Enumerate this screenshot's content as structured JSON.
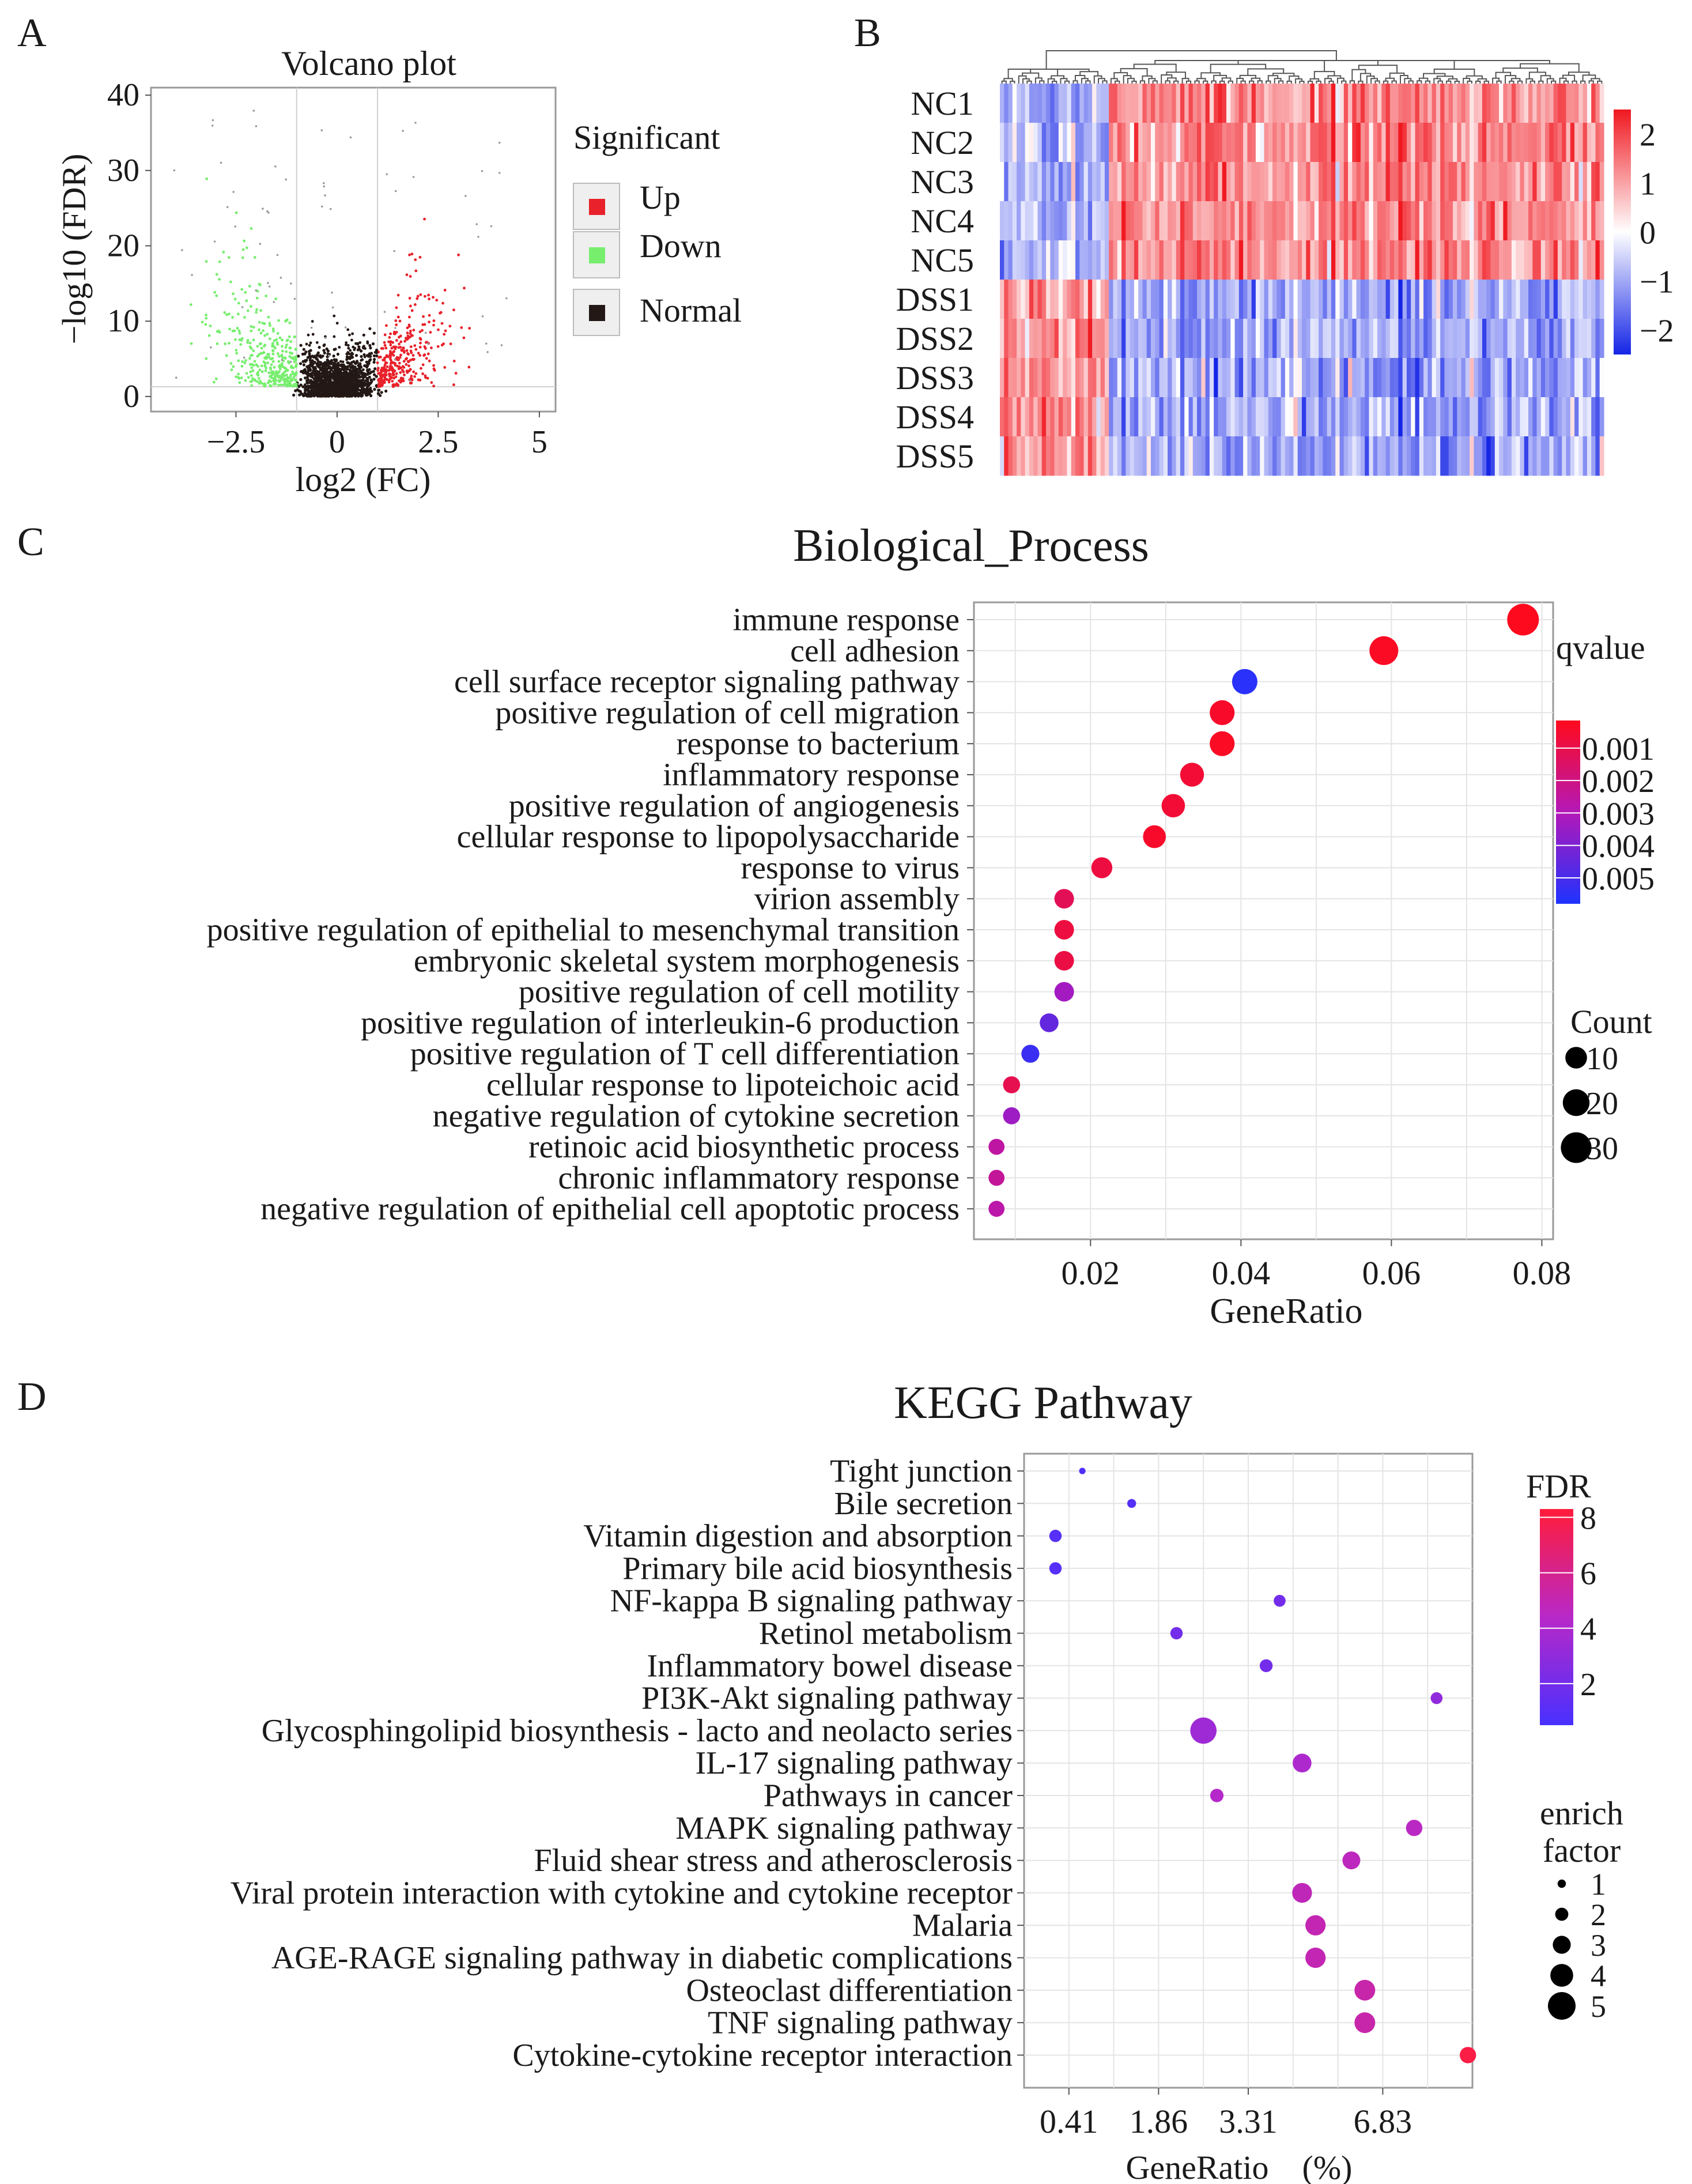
{
  "panel_labels": {
    "a": "A",
    "b": "B",
    "c": "C",
    "d": "D"
  },
  "colors": {
    "up": "#e8212a",
    "down": "#77ee6e",
    "normal": "#231815",
    "heat_low": "#1525e6",
    "heat_mid": "#ffffff",
    "heat_high": "#f01820",
    "q_low": "#ff0a1c",
    "q_high": "#1e33ff",
    "fdr_low": "#4830ff",
    "fdr_high": "#ff1c3a",
    "grid": "#e4e4e4",
    "frame": "#9a9a9a",
    "text": "#1a1a1a"
  },
  "chart_data": [
    {
      "id": "volcano",
      "type": "scatter",
      "title": "Volcano plot",
      "xlabel": "log2 (FC)",
      "ylabel": "−log10 (FDR)",
      "xlim": [
        -4.6,
        5.4
      ],
      "ylim": [
        -2,
        41
      ],
      "xticks": [
        -2.5,
        0,
        2.5,
        5
      ],
      "xtick_labels": [
        "−2.5",
        "0",
        "2.5",
        "5"
      ],
      "yticks": [
        0,
        10,
        20,
        30,
        40
      ],
      "ytick_labels": [
        "0",
        "10",
        "20",
        "30",
        "40"
      ],
      "fc_threshold": 1,
      "fdr_threshold": 1.3,
      "legend": {
        "title": "Significant",
        "items": [
          "Up",
          "Down",
          "Normal"
        ]
      }
    },
    {
      "id": "heatmap",
      "type": "heatmap",
      "rows": [
        "NC1",
        "NC2",
        "NC3",
        "NC4",
        "NC5",
        "DSS1",
        "DSS2",
        "DSS3",
        "DSS4",
        "DSS5"
      ],
      "colorbar_ticks": [
        2,
        1,
        0,
        -1,
        -2
      ],
      "colorbar_labels": [
        "2",
        "1",
        "0",
        "−1",
        "−2"
      ],
      "vrange": [
        -2.5,
        2.5
      ],
      "clusters": [
        {
          "columns": 26,
          "nc_mean": -0.9,
          "dss_mean": 1.2
        },
        {
          "columns": 118,
          "nc_mean": 1.3,
          "dss_mean": -1.0
        }
      ]
    },
    {
      "id": "bp",
      "type": "scatter",
      "title": "Biological_Process",
      "xlabel": "GeneRatio",
      "xlim": [
        0.0045,
        0.0815
      ],
      "xticks": [
        0.02,
        0.04,
        0.06,
        0.08
      ],
      "xtick_labels": [
        "0.02",
        "0.04",
        "0.06",
        "0.08"
      ],
      "categories": [
        "immune response",
        "cell adhesion",
        "cell surface receptor signaling pathway",
        "positive regulation of cell migration",
        "response to bacterium",
        "inflammatory response",
        "positive regulation of angiogenesis",
        "cellular response to lipopolysaccharide",
        "response to virus",
        "virion assembly",
        "positive regulation of epithelial to mesenchymal transition",
        "embryonic skeletal system morphogenesis",
        "positive regulation of cell motility",
        "positive regulation of interleukin-6 production",
        "positive regulation of T cell differentiation",
        "cellular response to lipoteichoic acid",
        "negative regulation of cytokine secretion",
        "retinoic acid biosynthetic process",
        "chronic inflammatory response",
        "negative regulation of epithelial cell apoptotic process"
      ],
      "gene_ratio": [
        0.0775,
        0.059,
        0.0405,
        0.0375,
        0.0375,
        0.0335,
        0.031,
        0.0285,
        0.0215,
        0.0165,
        0.0165,
        0.0165,
        0.0165,
        0.0145,
        0.012,
        0.0095,
        0.0095,
        0.0075,
        0.0075,
        0.0075
      ],
      "qvalue": [
        0.0002,
        0.0003,
        0.0056,
        0.0004,
        0.0003,
        0.0006,
        0.0006,
        0.0004,
        0.0008,
        0.0012,
        0.0008,
        0.0009,
        0.0033,
        0.0045,
        0.0053,
        0.0011,
        0.0034,
        0.0026,
        0.0024,
        0.0027
      ],
      "count": [
        33,
        25,
        17,
        16,
        16,
        14,
        13,
        12,
        9,
        7,
        7,
        7,
        7,
        6,
        5,
        4,
        4,
        3,
        3,
        3
      ],
      "color_legend": {
        "title": "qvalue",
        "ticks": [
          0.001,
          0.002,
          0.003,
          0.004,
          0.005
        ],
        "labels": [
          "0.001",
          "0.002",
          "0.003",
          "0.004",
          "0.005"
        ],
        "range": [
          0.00015,
          0.0058
        ]
      },
      "size_legend": {
        "title": "Count",
        "values": [
          10,
          20,
          30
        ],
        "labels": [
          "10",
          "20",
          "30"
        ]
      }
    },
    {
      "id": "kegg",
      "type": "scatter",
      "title": "KEGG Pathway",
      "xlabel": "GeneRatio　(%)",
      "xlim": [
        0,
        10
      ],
      "xticks": [
        0.41,
        1.86,
        3.31,
        6.83
      ],
      "xtick_labels": [
        "0.41",
        "1.86",
        "3.31",
        "6.83"
      ],
      "xtick_positions": [
        1,
        3,
        5,
        8
      ],
      "categories": [
        "Tight junction",
        "Bile secretion",
        "Vitamin digestion and absorption",
        "Primary bile acid biosynthesis",
        "NF-kappa B signaling pathway",
        "Retinol metabolism",
        "Inflammatory bowel disease",
        "PI3K-Akt signaling pathway",
        "Glycosphingolipid biosynthesis - lacto and neolacto series",
        "IL-17 signaling pathway",
        "Pathways in cancer",
        "MAPK signaling pathway",
        "Fluid shear stress and atherosclerosis",
        "Viral protein interaction with cytokine and cytokine receptor",
        "Malaria",
        "AGE-RAGE signaling pathway in diabetic complications",
        "Osteoclast differentiation",
        "TNF signaling pathway",
        "Cytokine-cytokine receptor interaction"
      ],
      "axis_position": [
        1.3,
        2.4,
        0.7,
        0.7,
        5.7,
        3.4,
        5.4,
        9.2,
        4.0,
        6.2,
        4.3,
        8.7,
        7.3,
        6.2,
        6.5,
        6.5,
        7.6,
        7.6,
        9.9
      ],
      "fdr": [
        0.8,
        0.9,
        1.0,
        1.0,
        2.0,
        2.0,
        2.0,
        3.0,
        3.5,
        4.0,
        4.3,
        4.5,
        4.7,
        4.8,
        5.0,
        5.0,
        5.2,
        5.2,
        8.0
      ],
      "enrich_factor": [
        0.6,
        1.1,
        1.8,
        1.8,
        1.7,
        1.8,
        1.9,
        1.7,
        4.6,
        3.1,
        2.0,
        2.6,
        2.9,
        3.3,
        3.4,
        3.4,
        3.5,
        3.5,
        2.6
      ],
      "color_legend": {
        "title": "FDR",
        "ticks": [
          8,
          6,
          4,
          2
        ],
        "labels": [
          "8",
          "6",
          "4",
          "2"
        ],
        "range": [
          0.5,
          8.3
        ]
      },
      "size_legend": {
        "title_line1": "enrich",
        "title_line2": "factor",
        "values": [
          1,
          2,
          3,
          4,
          5
        ],
        "labels": [
          "1",
          "2",
          "3",
          "4",
          "5"
        ]
      }
    }
  ]
}
